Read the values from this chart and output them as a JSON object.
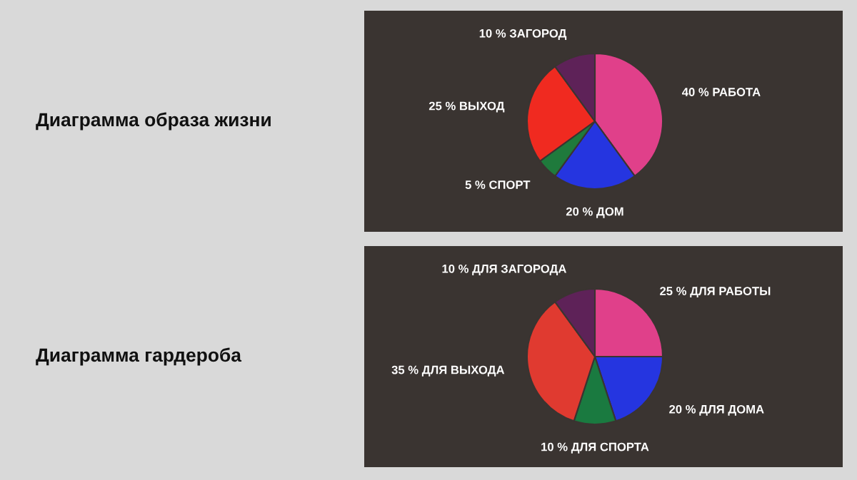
{
  "chart_data": [
    {
      "type": "pie",
      "title": "Диаграмма образа жизни",
      "categories": [
        "РАБОТА",
        "ДОМ",
        "СПОРТ",
        "ВЫХОД",
        "ЗАГОРОД"
      ],
      "values": [
        40,
        20,
        5,
        25,
        10
      ],
      "value_labels": [
        "40 %",
        "20 %",
        "5 %",
        "25 %",
        "10 %"
      ],
      "colors": [
        "#e0408a",
        "#2535e0",
        "#1f7a3c",
        "#f02a20",
        "#5e2258"
      ]
    },
    {
      "type": "pie",
      "title": "Диаграмма гардероба",
      "categories": [
        "ДЛЯ РАБОТЫ",
        "ДЛЯ ДОМА",
        "ДЛЯ СПОРТА",
        "ДЛЯ ВЫХОДА",
        "ДЛЯ ЗАГОРОДА"
      ],
      "values": [
        25,
        20,
        10,
        35,
        10
      ],
      "value_labels": [
        "25 %",
        "20 %",
        "10 %",
        "35 %",
        "10 %"
      ],
      "colors": [
        "#e0408a",
        "#2535e0",
        "#1a7a40",
        "#e03a30",
        "#5e2258"
      ]
    }
  ]
}
